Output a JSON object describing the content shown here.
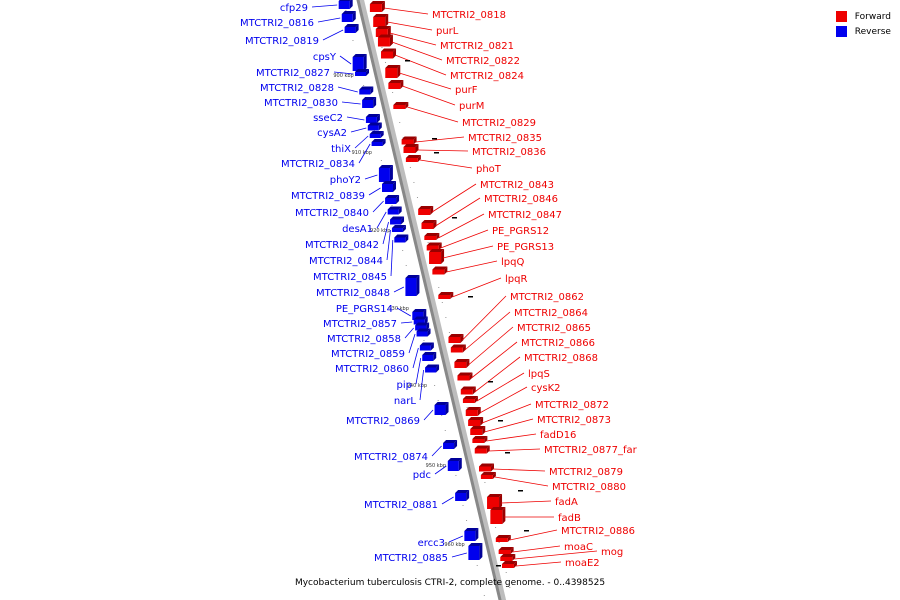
{
  "legend": {
    "forward": {
      "label": "Forward",
      "color": "#ee0000"
    },
    "reverse": {
      "label": "Reverse",
      "color": "#0000ee"
    }
  },
  "caption": "Mycobacterium tuberculosis CTRI-2, complete genome. - 0..4398525",
  "backbone_color": "#888888",
  "kbp_markers": [
    "900 kbp",
    "910 kbp",
    "920 kbp",
    "930 kbp",
    "940 kbp",
    "950 kbp",
    "960 kbp"
  ],
  "forward_genes": [
    "MTCTRI2_0818",
    "purL",
    "MTCTRI2_0821",
    "MTCTRI2_0822",
    "MTCTRI2_0824",
    "purF",
    "purM",
    "MTCTRI2_0829",
    "MTCTRI2_0835",
    "MTCTRI2_0836",
    "phoT",
    "MTCTRI2_0843",
    "MTCTRI2_0846",
    "MTCTRI2_0847",
    "PE_PGRS12",
    "PE_PGRS13",
    "lpqQ",
    "lpqR",
    "MTCTRI2_0862",
    "MTCTRI2_0864",
    "MTCTRI2_0865",
    "MTCTRI2_0866",
    "MTCTRI2_0868",
    "lpqS",
    "cysK2",
    "MTCTRI2_0872",
    "MTCTRI2_0873",
    "fadD16",
    "MTCTRI2_0877_far",
    "MTCTRI2_0879",
    "MTCTRI2_0880",
    "fadA",
    "fadB",
    "MTCTRI2_0886",
    "moaC",
    "mog",
    "moaE2"
  ],
  "reverse_genes": [
    "cfp29",
    "MTCTRI2_0816",
    "MTCTRI2_0819",
    "cpsY",
    "MTCTRI2_0827",
    "MTCTRI2_0828",
    "MTCTRI2_0830",
    "sseC2",
    "cysA2",
    "thiX",
    "MTCTRI2_0834",
    "phoY2",
    "MTCTRI2_0839",
    "MTCTRI2_0840",
    "desA1",
    "MTCTRI2_0842",
    "MTCTRI2_0844",
    "MTCTRI2_0845",
    "MTCTRI2_0848",
    "PE_PGRS14",
    "MTCTRI2_0857",
    "MTCTRI2_0858",
    "MTCTRI2_0859",
    "MTCTRI2_0860",
    "pip",
    "narL",
    "MTCTRI2_0869",
    "MTCTRI2_0874",
    "pdc",
    "MTCTRI2_0881",
    "ercc3",
    "MTCTRI2_0885"
  ]
}
